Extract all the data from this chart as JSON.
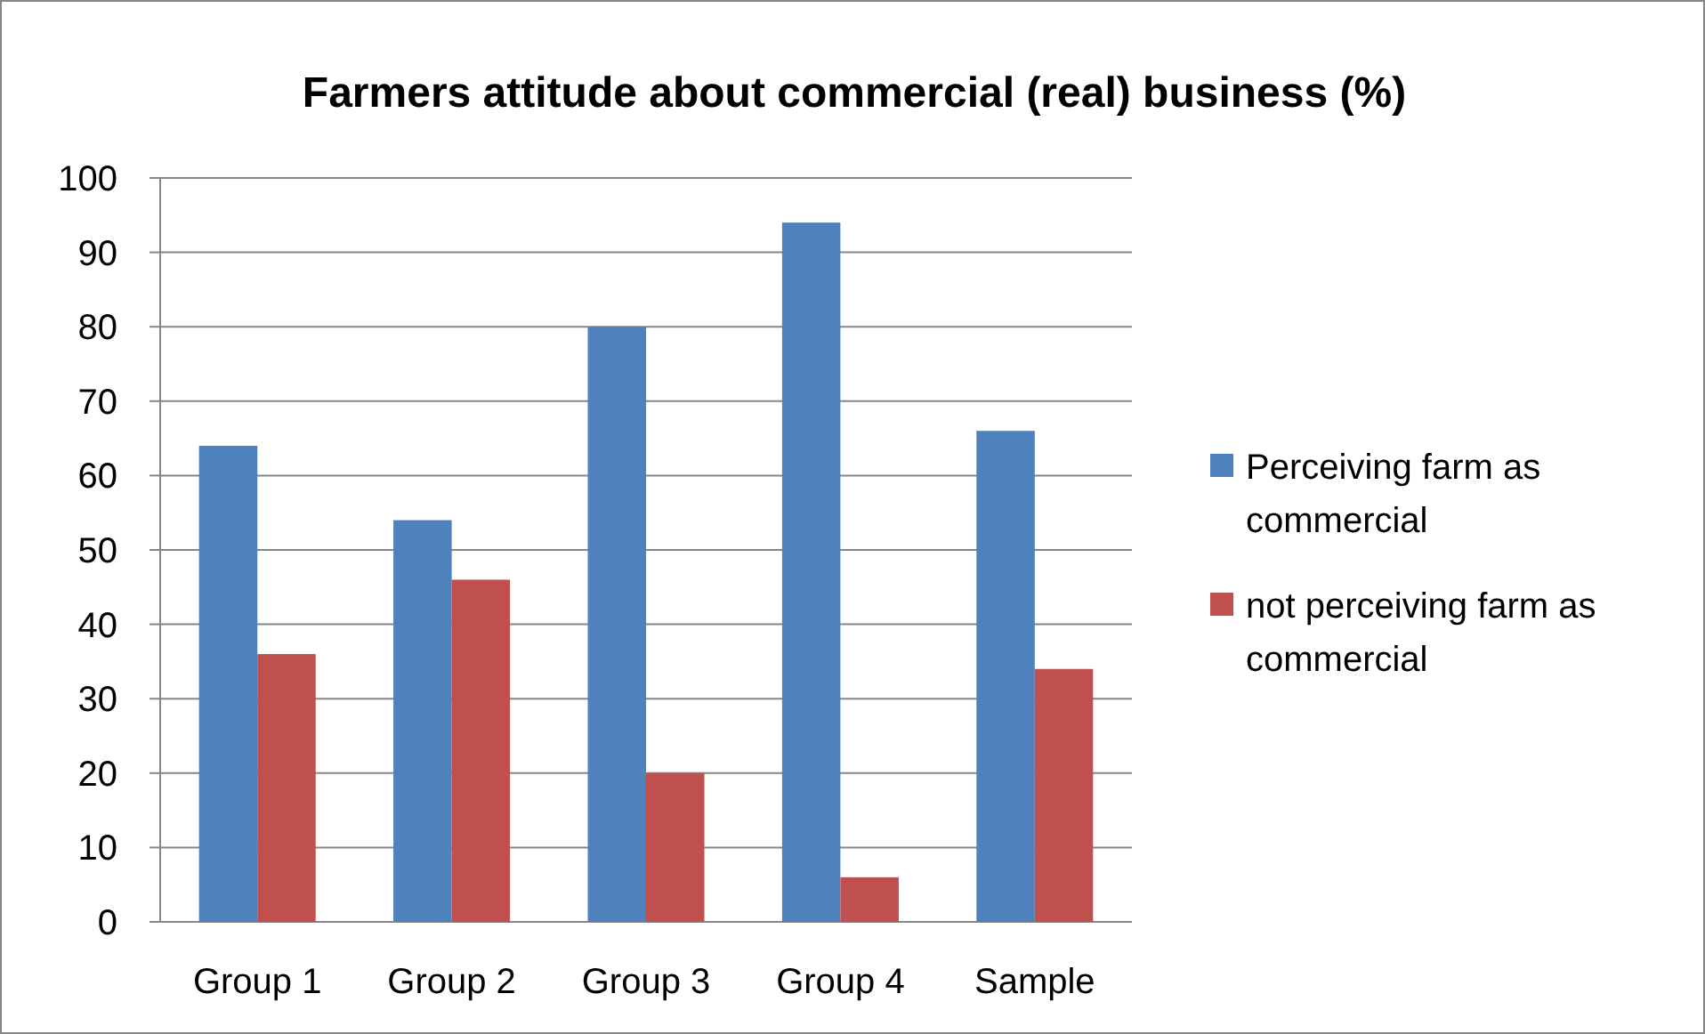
{
  "chart_data": {
    "type": "bar",
    "title": "Farmers attitude about commercial (real) business (%)",
    "categories": [
      "Group 1",
      "Group 2",
      "Group 3",
      "Group 4",
      "Sample"
    ],
    "series": [
      {
        "name": "Perceiving farm as commercial",
        "color": "#4f81bd",
        "values": [
          64,
          54,
          80,
          94,
          66
        ]
      },
      {
        "name": "not perceiving farm as commercial",
        "color": "#c0504d",
        "values": [
          36,
          46,
          20,
          6,
          34
        ]
      }
    ],
    "ylim": [
      0,
      100
    ],
    "yticks": [
      0,
      10,
      20,
      30,
      40,
      50,
      60,
      70,
      80,
      90,
      100
    ],
    "grid": "y",
    "legend": "right"
  }
}
